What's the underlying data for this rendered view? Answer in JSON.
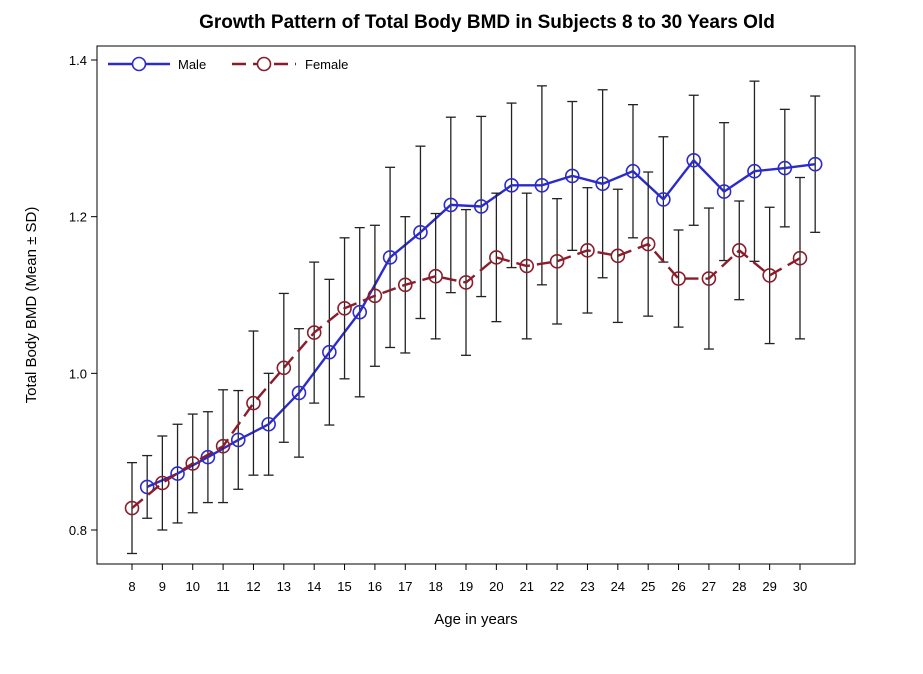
{
  "chart_data": {
    "type": "line",
    "title": "Growth Pattern of Total Body BMD in Subjects 8 to 30 Years Old",
    "xlabel": "Age in years",
    "ylabel": "Total Body BMD (Mean ± SD)",
    "xlim": [
      7.5,
      31
    ],
    "ylim": [
      0.75,
      1.42
    ],
    "xticks": [
      8,
      9,
      10,
      11,
      12,
      13,
      14,
      15,
      16,
      17,
      18,
      19,
      20,
      21,
      22,
      23,
      24,
      25,
      26,
      27,
      28,
      29,
      30
    ],
    "yticks": [
      0.8,
      1.0,
      1.2,
      1.4
    ],
    "ytick_labels": [
      "0.8",
      "1.0",
      "1.2",
      "1.4"
    ],
    "grid": false,
    "legend_position": "top-left",
    "series": [
      {
        "name": "Male",
        "color": "#2b2bcc",
        "dash": "solid",
        "x": [
          8.5,
          9.5,
          10.5,
          11.5,
          12.5,
          13.5,
          14.5,
          15.5,
          16.5,
          17.5,
          18.5,
          19.5,
          20.5,
          21.5,
          22.5,
          23.5,
          24.5,
          25.5,
          26.5,
          27.5,
          28.5,
          29.5,
          30.5
        ],
        "y": [
          0.855,
          0.872,
          0.893,
          0.915,
          0.935,
          0.975,
          1.027,
          1.078,
          1.148,
          1.18,
          1.215,
          1.213,
          1.24,
          1.24,
          1.252,
          1.242,
          1.258,
          1.222,
          1.272,
          1.232,
          1.258,
          1.262,
          1.267
        ],
        "sd": [
          0.04,
          0.063,
          0.058,
          0.063,
          0.065,
          0.082,
          0.093,
          0.108,
          0.115,
          0.11,
          0.112,
          0.115,
          0.105,
          0.127,
          0.095,
          0.12,
          0.085,
          0.08,
          0.083,
          0.088,
          0.115,
          0.075,
          0.087
        ]
      },
      {
        "name": "Female",
        "color": "#8b1c2b",
        "dash": "dashed",
        "x": [
          8,
          9,
          10,
          11,
          12,
          13,
          14,
          15,
          16,
          17,
          18,
          19,
          20,
          21,
          22,
          23,
          24,
          25,
          26,
          27,
          28,
          29,
          30
        ],
        "y": [
          0.828,
          0.86,
          0.885,
          0.907,
          0.962,
          1.007,
          1.052,
          1.083,
          1.099,
          1.113,
          1.124,
          1.116,
          1.148,
          1.137,
          1.143,
          1.157,
          1.15,
          1.165,
          1.121,
          1.121,
          1.157,
          1.125,
          1.147
        ],
        "sd": [
          0.058,
          0.06,
          0.063,
          0.072,
          0.092,
          0.095,
          0.09,
          0.09,
          0.09,
          0.087,
          0.08,
          0.093,
          0.082,
          0.093,
          0.08,
          0.08,
          0.085,
          0.092,
          0.062,
          0.09,
          0.063,
          0.087,
          0.103
        ]
      }
    ]
  }
}
